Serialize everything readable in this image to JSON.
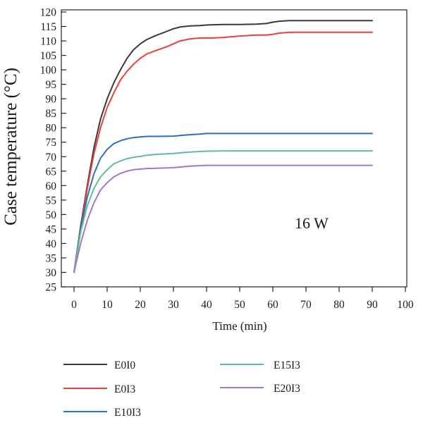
{
  "chart_data": {
    "type": "line",
    "title": "",
    "xlabel": "Time (min)",
    "ylabel": "Case temperature (°C)",
    "xlim": [
      0,
      100
    ],
    "ylim": [
      25,
      120
    ],
    "xticks": [
      "0",
      "10",
      "20",
      "30",
      "40",
      "50",
      "60",
      "70",
      "80",
      "90",
      "100"
    ],
    "yticks": [
      "25",
      "30",
      "35",
      "40",
      "45",
      "50",
      "55",
      "60",
      "65",
      "70",
      "75",
      "80",
      "85",
      "90",
      "95",
      "100",
      "105",
      "110",
      "115",
      "120"
    ],
    "grid": false,
    "annotation": "16 W",
    "legend_position": "below",
    "series": [
      {
        "name": "E0I0",
        "color": "#3a3a3a",
        "x": [
          0,
          2,
          4,
          6,
          8,
          10,
          12,
          14,
          16,
          18,
          20,
          22,
          25,
          28,
          30,
          32,
          35,
          38,
          40,
          42,
          45,
          50,
          55,
          58,
          60,
          62,
          65,
          70,
          80,
          90
        ],
        "y": [
          30,
          46,
          60,
          73,
          83,
          90,
          95.5,
          100,
          104,
          107,
          109,
          110.5,
          112,
          113.3,
          114.2,
          114.8,
          115.2,
          115.3,
          115.5,
          115.6,
          115.7,
          115.7,
          115.8,
          116,
          116.5,
          116.8,
          117,
          117,
          117,
          117
        ]
      },
      {
        "name": "E0I3",
        "color": "#e8413c",
        "x": [
          0,
          2,
          4,
          6,
          8,
          10,
          12,
          14,
          16,
          18,
          20,
          22,
          25,
          28,
          30,
          32,
          35,
          38,
          40,
          42,
          45,
          50,
          55,
          58,
          60,
          62,
          65,
          70,
          80,
          90
        ],
        "y": [
          30,
          45,
          59,
          71,
          80,
          87,
          92,
          96.5,
          99.5,
          102,
          104,
          105.5,
          106.8,
          108,
          109,
          110,
          110.7,
          111,
          111,
          111,
          111.2,
          111.7,
          112,
          112,
          112.3,
          112.7,
          113,
          113,
          113,
          113
        ]
      },
      {
        "name": "E10I3",
        "color": "#2f6ec4",
        "x": [
          0,
          2,
          4,
          6,
          8,
          10,
          12,
          14,
          16,
          18,
          20,
          22,
          25,
          30,
          32,
          35,
          38,
          40,
          42,
          45,
          50,
          60,
          70,
          80,
          90
        ],
        "y": [
          30,
          45,
          56,
          64,
          69.5,
          72.5,
          74.5,
          75.5,
          76.2,
          76.6,
          76.8,
          77,
          77,
          77.1,
          77.3,
          77.6,
          77.8,
          78,
          78,
          78,
          78,
          78,
          78,
          78,
          78
        ]
      },
      {
        "name": "E15I3",
        "color": "#5fbf8f",
        "x": [
          0,
          2,
          4,
          6,
          8,
          10,
          12,
          14,
          16,
          18,
          20,
          22,
          25,
          28,
          30,
          32,
          35,
          38,
          40,
          45,
          50,
          60,
          70,
          80,
          90
        ],
        "y": [
          30,
          44,
          53,
          59,
          63,
          65.5,
          67.5,
          68.5,
          69.3,
          69.8,
          70.1,
          70.5,
          70.8,
          71,
          71.1,
          71.3,
          71.6,
          71.8,
          71.9,
          72,
          72,
          72,
          72,
          72,
          72
        ]
      },
      {
        "name": "E20I3",
        "color": "#a07ac7",
        "x": [
          0,
          2,
          4,
          6,
          8,
          10,
          12,
          14,
          16,
          18,
          20,
          22,
          25,
          28,
          30,
          32,
          35,
          38,
          40,
          45,
          50,
          60,
          70,
          80,
          90
        ],
        "y": [
          30,
          40,
          48,
          54,
          58.5,
          61,
          63,
          64.2,
          65,
          65.5,
          65.7,
          65.9,
          66,
          66.1,
          66.2,
          66.4,
          66.7,
          66.9,
          67,
          67,
          67,
          67,
          67,
          67,
          67
        ]
      }
    ]
  }
}
